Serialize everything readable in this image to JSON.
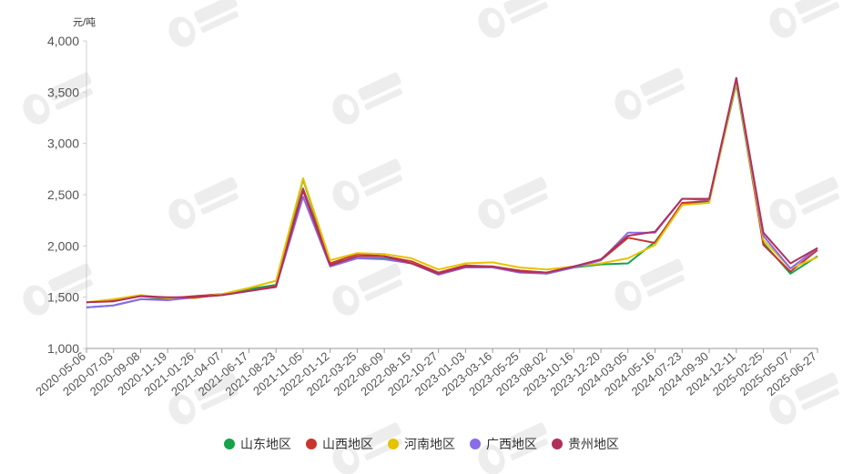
{
  "chart_data": {
    "type": "line",
    "unit_label": "元/吨",
    "ylim": [
      1000,
      4000
    ],
    "y_ticks": [
      "1,000",
      "1,500",
      "2,000",
      "2,500",
      "3,000",
      "3,500",
      "4,000"
    ],
    "y_tick_values": [
      1000,
      1500,
      2000,
      2500,
      3000,
      3500,
      4000
    ],
    "x_ticks": [
      "2020-05-06",
      "2020-07-03",
      "2020-09-08",
      "2020-11-19",
      "2021-01-26",
      "2021-04-07",
      "2021-06-17",
      "2021-08-23",
      "2021-11-05",
      "2022-01-12",
      "2022-03-25",
      "2022-06-09",
      "2022-08-15",
      "2022-10-27",
      "2023-01-03",
      "2023-03-16",
      "2023-05-25",
      "2023-08-02",
      "2023-10-16",
      "2023-12-20",
      "2024-03-05",
      "2024-05-16",
      "2024-07-23",
      "2024-09-30",
      "2024-12-11",
      "2025-02-25",
      "2025-05-07",
      "2025-06-27"
    ],
    "grid": false,
    "legend_position": "bottom",
    "series": [
      {
        "name": "山东地区",
        "color": "#16a34a",
        "values": [
          1400,
          1420,
          1480,
          1480,
          1510,
          1520,
          1580,
          1620,
          2650,
          1830,
          1880,
          1880,
          1830,
          1730,
          1800,
          1790,
          1760,
          1730,
          1790,
          1820,
          1830,
          2040,
          2400,
          2440,
          3580,
          2030,
          1730,
          1900
        ]
      },
      {
        "name": "山西地区",
        "color": "#c8372d",
        "values": [
          1450,
          1470,
          1510,
          1490,
          1510,
          1530,
          1560,
          1610,
          2560,
          1830,
          1920,
          1900,
          1850,
          1740,
          1810,
          1800,
          1760,
          1740,
          1800,
          1860,
          2080,
          2030,
          2420,
          2440,
          3620,
          2010,
          1750,
          1960
        ]
      },
      {
        "name": "河南地区",
        "color": "#e6c200",
        "values": [
          1450,
          1480,
          1520,
          1490,
          1490,
          1530,
          1590,
          1660,
          2660,
          1860,
          1930,
          1920,
          1880,
          1770,
          1830,
          1840,
          1790,
          1770,
          1800,
          1830,
          1880,
          2010,
          2400,
          2420,
          3600,
          2060,
          1780,
          1890
        ]
      },
      {
        "name": "广西地区",
        "color": "#8b6be8",
        "values": [
          1400,
          1420,
          1480,
          1470,
          1500,
          1520,
          1560,
          1600,
          2480,
          1800,
          1880,
          1870,
          1830,
          1720,
          1790,
          1790,
          1740,
          1730,
          1790,
          1860,
          2130,
          2130,
          2460,
          2450,
          3630,
          2100,
          1780,
          1980
        ]
      },
      {
        "name": "贵州地区",
        "color": "#b0305a",
        "values": [
          1450,
          1460,
          1510,
          1500,
          1500,
          1520,
          1560,
          1600,
          2540,
          1810,
          1900,
          1900,
          1830,
          1730,
          1800,
          1800,
          1750,
          1740,
          1800,
          1870,
          2100,
          2140,
          2460,
          2460,
          3640,
          2130,
          1830,
          1980
        ]
      }
    ]
  }
}
